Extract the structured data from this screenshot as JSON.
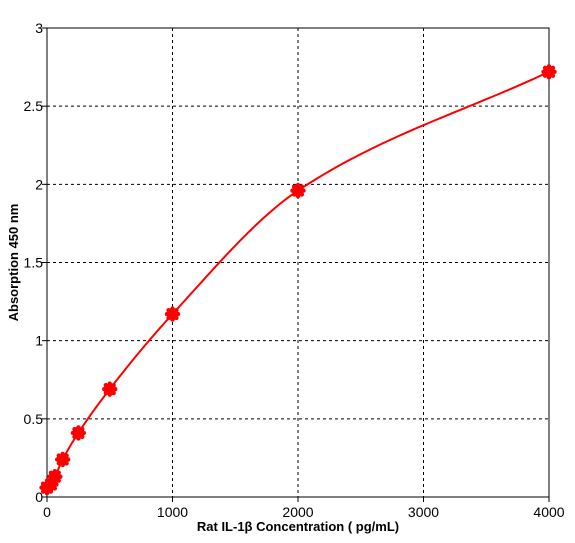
{
  "chart_data": {
    "type": "scatter",
    "title": "",
    "xlabel": "Rat IL-1β Concentration ( pg/mL)",
    "ylabel": "Absorption 450 nm",
    "xlim": [
      0,
      4000
    ],
    "ylim": [
      0,
      3
    ],
    "x_ticks": [
      "0",
      "1000",
      "2000",
      "3000",
      "4000"
    ],
    "y_ticks": [
      "0",
      "0.5",
      "1",
      "1.5",
      "2",
      "2.5",
      "3"
    ],
    "grid": true,
    "legend": "none",
    "series": [
      {
        "points": [
          {
            "x": 0,
            "y": 0.06
          },
          {
            "x": 31.25,
            "y": 0.08
          },
          {
            "x": 62.5,
            "y": 0.13
          },
          {
            "x": 125,
            "y": 0.24
          },
          {
            "x": 250,
            "y": 0.41
          },
          {
            "x": 500,
            "y": 0.69
          },
          {
            "x": 1000,
            "y": 1.17
          },
          {
            "x": 2000,
            "y": 1.96
          },
          {
            "x": 4000,
            "y": 2.72
          }
        ],
        "color": "#ff0000",
        "fit_curve": true
      }
    ]
  }
}
